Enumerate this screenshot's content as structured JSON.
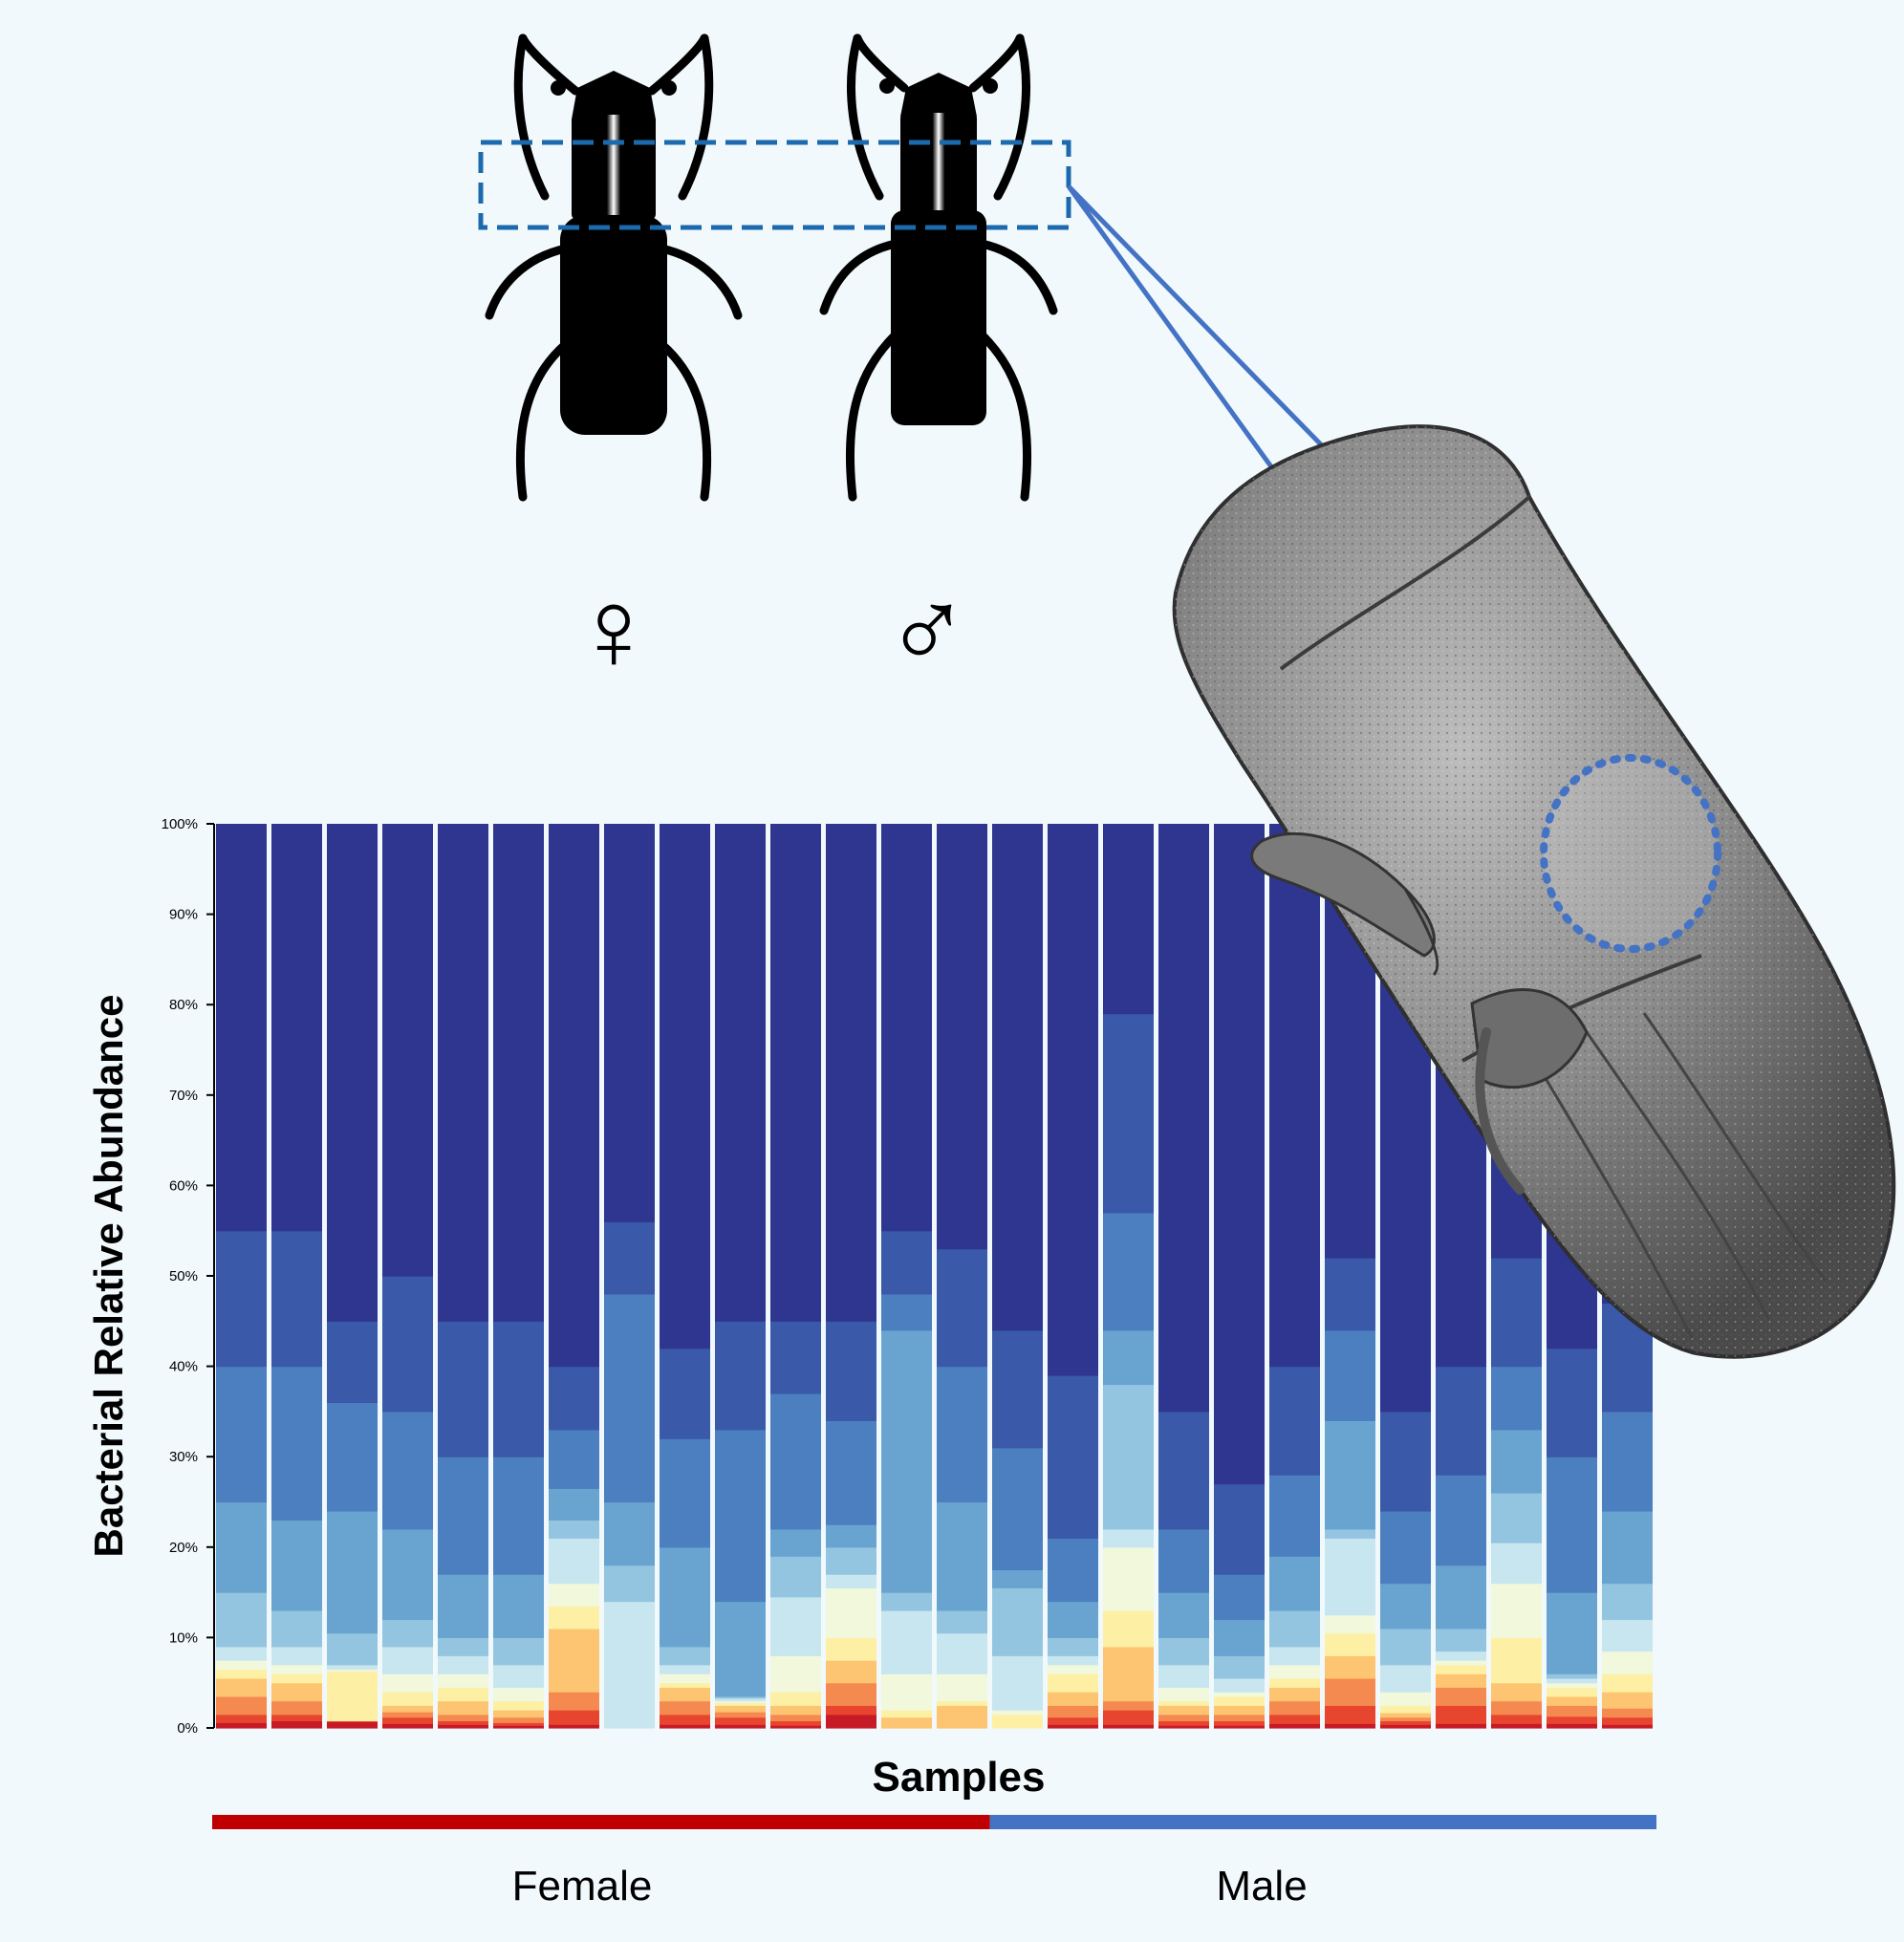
{
  "sex_symbols": {
    "female": "♀",
    "male": "♂"
  },
  "chart_data": {
    "type": "bar",
    "stacked": true,
    "normalized": true,
    "ylabel": "Bacterial Relative Abundance",
    "xlabel": "Samples",
    "yticks": [
      "0%",
      "10%",
      "20%",
      "30%",
      "40%",
      "50%",
      "60%",
      "70%",
      "80%",
      "90%",
      "100%"
    ],
    "ylim": [
      0,
      100
    ],
    "grid": false,
    "groups": [
      {
        "name": "Female",
        "color": "#c00000",
        "n_samples": 14
      },
      {
        "name": "Male",
        "color": "#4472c4",
        "n_samples": 12
      }
    ],
    "colors": {
      "dominant": "#2e3690",
      "palette_low_to_high": [
        "#c61a27",
        "#e8452f",
        "#f58a51",
        "#fdc471",
        "#fdf0a5",
        "#f1f8dc",
        "#c8e6ef",
        "#94c5e0",
        "#69a4d0",
        "#4b7fbf",
        "#3a59a8",
        "#2e3690"
      ]
    },
    "samples": [
      {
        "group": "Female",
        "stops": [
          0.6,
          1.5,
          3.5,
          5.5,
          6.5,
          7.5,
          9,
          15,
          25,
          40,
          55
        ]
      },
      {
        "group": "Female",
        "stops": [
          0.8,
          1.5,
          3,
          5,
          6,
          7,
          9,
          13,
          23,
          40,
          55
        ]
      },
      {
        "group": "Female",
        "stops": [
          0.7,
          0.8,
          0.8,
          0.8,
          6.3,
          6.5,
          7,
          10.5,
          24,
          36,
          45
        ]
      },
      {
        "group": "Female",
        "stops": [
          0.5,
          1.2,
          1.8,
          2.5,
          4,
          6,
          9,
          12,
          22,
          35,
          50
        ]
      },
      {
        "group": "Female",
        "stops": [
          0.4,
          0.8,
          1.5,
          3,
          4.5,
          6,
          8,
          10,
          17,
          30,
          45
        ]
      },
      {
        "group": "Female",
        "stops": [
          0.3,
          0.6,
          1.2,
          2,
          3,
          4.5,
          7,
          10,
          17,
          30,
          45
        ]
      },
      {
        "group": "Female",
        "stops": [
          0.4,
          2,
          4,
          11,
          13.5,
          16,
          21,
          23,
          26.5,
          33,
          40
        ]
      },
      {
        "group": "Female",
        "stops": [
          0,
          0,
          0,
          0,
          0,
          0,
          14,
          18,
          25,
          48,
          56
        ]
      },
      {
        "group": "Female",
        "stops": [
          0.4,
          1.5,
          3,
          4.5,
          5,
          6,
          7,
          9,
          20,
          32,
          42
        ]
      },
      {
        "group": "Female",
        "stops": [
          0.4,
          1.2,
          1.8,
          2.5,
          2.8,
          3,
          3.3,
          3.5,
          14,
          33,
          45
        ]
      },
      {
        "group": "Female",
        "stops": [
          0.3,
          0.8,
          1.5,
          2.5,
          4,
          8,
          14.5,
          19,
          22,
          37,
          45
        ]
      },
      {
        "group": "Female",
        "stops": [
          1.5,
          2.5,
          5,
          7.5,
          10,
          15.5,
          17,
          20,
          22.5,
          34,
          45
        ]
      },
      {
        "group": "Female",
        "stops": [
          0,
          0,
          0,
          1.2,
          2,
          6,
          13,
          15,
          44,
          48,
          55
        ]
      },
      {
        "group": "Female",
        "stops": [
          0,
          0,
          0,
          2.5,
          3,
          6,
          10.5,
          13,
          25,
          40,
          53
        ]
      },
      {
        "group": "Male",
        "stops": [
          0,
          0,
          0,
          0,
          1.5,
          2,
          8,
          15.5,
          17.5,
          31,
          44
        ]
      },
      {
        "group": "Male",
        "stops": [
          0.4,
          1.2,
          2.5,
          4,
          6,
          7,
          8,
          10,
          14,
          21,
          39
        ]
      },
      {
        "group": "Male",
        "stops": [
          0.4,
          2,
          3,
          9,
          13,
          20,
          22,
          38,
          44,
          57,
          79
        ]
      },
      {
        "group": "Male",
        "stops": [
          0.3,
          0.8,
          1.5,
          2.5,
          3,
          4.5,
          7,
          10,
          15,
          22,
          35
        ]
      },
      {
        "group": "Male",
        "stops": [
          0.3,
          0.8,
          1.5,
          2.5,
          3.5,
          4,
          5.5,
          8,
          12,
          17,
          27
        ]
      },
      {
        "group": "Male",
        "stops": [
          0.5,
          1.5,
          3,
          4.5,
          5.5,
          7,
          9,
          13,
          19,
          28,
          40
        ]
      },
      {
        "group": "Male",
        "stops": [
          0.5,
          2.5,
          5.5,
          8,
          10.5,
          12.5,
          21,
          22,
          34,
          44,
          52
        ]
      },
      {
        "group": "Male",
        "stops": [
          0.4,
          0.8,
          1.2,
          1.7,
          2.5,
          4,
          7,
          11,
          16,
          24,
          35
        ]
      },
      {
        "group": "Male",
        "stops": [
          0.5,
          2.5,
          4.5,
          6,
          7,
          7.5,
          8.5,
          11,
          18,
          28,
          40
        ]
      },
      {
        "group": "Male",
        "stops": [
          0.5,
          1.5,
          3,
          5,
          10,
          16,
          20.5,
          26,
          33,
          40,
          52
        ]
      },
      {
        "group": "Male",
        "stops": [
          0.5,
          1.3,
          2.5,
          3.5,
          4.5,
          5,
          5.5,
          6,
          15,
          30,
          42
        ]
      },
      {
        "group": "Male",
        "stops": [
          0.4,
          1.2,
          2.2,
          4,
          6,
          8.5,
          12,
          16,
          24,
          35,
          47
        ]
      }
    ]
  }
}
